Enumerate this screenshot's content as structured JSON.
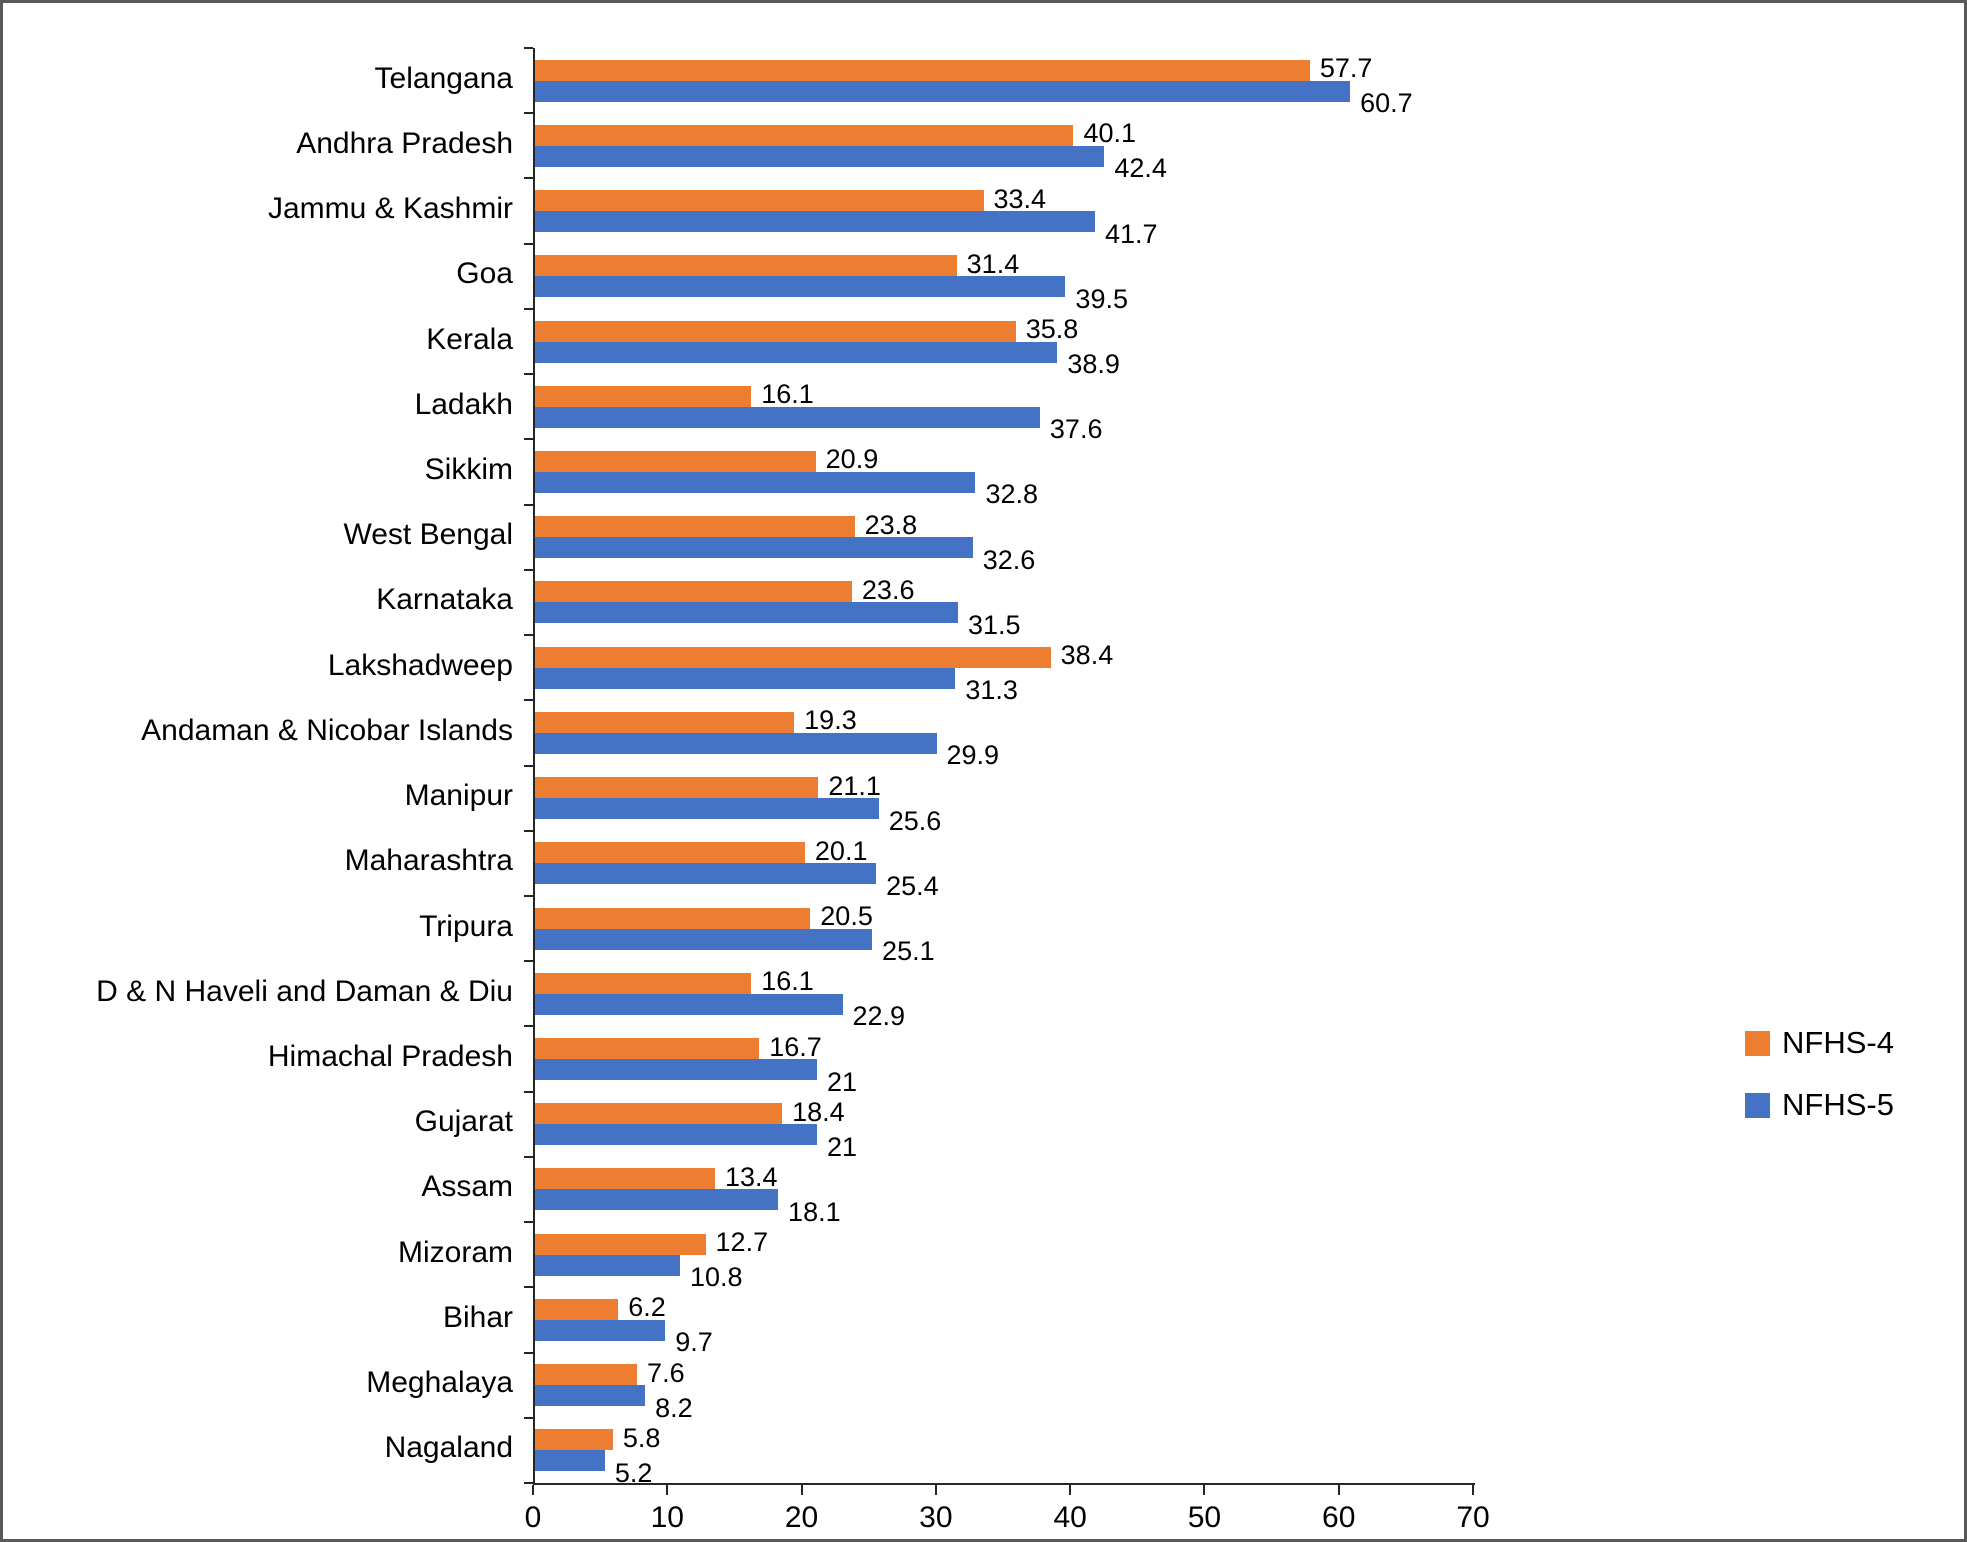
{
  "chart_data": {
    "type": "bar",
    "orientation": "horizontal",
    "title": "",
    "xlabel": "",
    "ylabel": "",
    "xlim": [
      0,
      70
    ],
    "x_ticks": [
      0,
      10,
      20,
      30,
      40,
      50,
      60,
      70
    ],
    "grid": false,
    "legend_position": "right",
    "categories": [
      "Telangana",
      "Andhra Pradesh",
      "Jammu & Kashmir",
      "Goa",
      "Kerala",
      "Ladakh",
      "Sikkim",
      "West Bengal",
      "Karnataka",
      "Lakshadweep",
      "Andaman & Nicobar Islands",
      "Manipur",
      "Maharashtra",
      "Tripura",
      "D & N Haveli and Daman & Diu",
      "Himachal Pradesh",
      "Gujarat",
      "Assam",
      "Mizoram",
      "Bihar",
      "Meghalaya",
      "Nagaland"
    ],
    "series": [
      {
        "name": "NFHS-4",
        "color": "#ED7D31",
        "values": [
          57.7,
          40.1,
          33.4,
          31.4,
          35.8,
          16.1,
          20.9,
          23.8,
          23.6,
          38.4,
          19.3,
          21.1,
          20.1,
          20.5,
          16.1,
          16.7,
          18.4,
          13.4,
          12.7,
          6.2,
          7.6,
          5.8
        ]
      },
      {
        "name": "NFHS-5",
        "color": "#4472C4",
        "values": [
          60.7,
          42.4,
          41.7,
          39.5,
          38.9,
          37.6,
          32.8,
          32.6,
          31.5,
          31.3,
          29.9,
          25.6,
          25.4,
          25.1,
          22.9,
          21,
          21,
          18.1,
          10.8,
          9.7,
          8.2,
          5.2
        ]
      }
    ]
  }
}
